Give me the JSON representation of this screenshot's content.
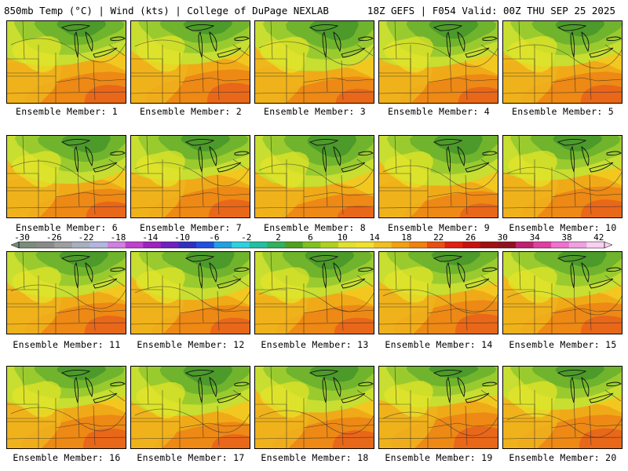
{
  "header": {
    "left": "850mb Temp (°C) | Wind (kts) | College of DuPage NEXLAB",
    "right": "18Z GEFS | F054 Valid: 00Z THU SEP 25 2025"
  },
  "members": [
    {
      "label": "Ensemble Member: 1",
      "warmth": 0.55
    },
    {
      "label": "Ensemble Member: 2",
      "warmth": 0.6
    },
    {
      "label": "Ensemble Member: 3",
      "warmth": 0.45
    },
    {
      "label": "Ensemble Member: 4",
      "warmth": 0.5
    },
    {
      "label": "Ensemble Member: 5",
      "warmth": 0.55
    },
    {
      "label": "Ensemble Member: 6",
      "warmth": 0.5
    },
    {
      "label": "Ensemble Member: 7",
      "warmth": 0.55
    },
    {
      "label": "Ensemble Member: 8",
      "warmth": 0.4
    },
    {
      "label": "Ensemble Member: 9",
      "warmth": 0.45
    },
    {
      "label": "Ensemble Member: 10",
      "warmth": 0.55
    },
    {
      "label": "Ensemble Member: 11",
      "warmth": 0.55
    },
    {
      "label": "Ensemble Member: 12",
      "warmth": 0.5
    },
    {
      "label": "Ensemble Member: 13",
      "warmth": 0.5
    },
    {
      "label": "Ensemble Member: 14",
      "warmth": 0.6
    },
    {
      "label": "Ensemble Member: 15",
      "warmth": 0.55
    },
    {
      "label": "Ensemble Member: 16",
      "warmth": 0.6
    },
    {
      "label": "Ensemble Member: 17",
      "warmth": 0.45
    },
    {
      "label": "Ensemble Member: 18",
      "warmth": 0.55
    },
    {
      "label": "Ensemble Member: 19",
      "warmth": 0.65
    },
    {
      "label": "Ensemble Member: 20",
      "warmth": 0.6
    }
  ],
  "colorbar": {
    "tick_labels": [
      "-30",
      "-26",
      "-22",
      "-18",
      "-14",
      "-10",
      "-6",
      "-2",
      "2",
      "6",
      "10",
      "14",
      "18",
      "22",
      "26",
      "30",
      "34",
      "38",
      "42"
    ],
    "colors": [
      "#7a8c7a",
      "#8a8a8a",
      "#9e9e9e",
      "#a8b0c0",
      "#b4b4e0",
      "#d080e0",
      "#c040d0",
      "#a020c0",
      "#7020c0",
      "#3030c0",
      "#2050e0",
      "#20a0e0",
      "#30d0e0",
      "#20c0a0",
      "#30b060",
      "#50a020",
      "#80c020",
      "#b0d020",
      "#e0e030",
      "#f0e030",
      "#f0c020",
      "#f0a010",
      "#f08010",
      "#e85010",
      "#e02010",
      "#c81010",
      "#a01010",
      "#901020",
      "#c02070",
      "#e040a0",
      "#f070d0",
      "#f0a0e0",
      "#f8d0f0"
    ]
  }
}
